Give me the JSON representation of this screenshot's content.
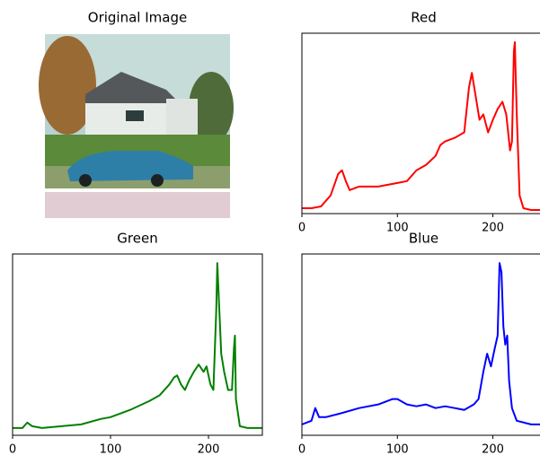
{
  "chart_data": [
    {
      "type": "image",
      "title": "Original Image"
    },
    {
      "type": "line",
      "title": "Red",
      "color": "#ff0000",
      "xlim": [
        0,
        255
      ],
      "ylim": [
        0,
        100
      ],
      "xticks": [
        0,
        100,
        200
      ],
      "x": [
        0,
        10,
        20,
        30,
        38,
        42,
        46,
        50,
        55,
        60,
        70,
        80,
        90,
        100,
        110,
        120,
        130,
        140,
        145,
        150,
        160,
        170,
        175,
        178,
        182,
        186,
        190,
        195,
        200,
        205,
        210,
        214,
        218,
        220,
        222,
        223,
        225,
        228,
        232,
        240,
        255
      ],
      "values": [
        3,
        3,
        4,
        10,
        22,
        24,
        18,
        13,
        14,
        15,
        15,
        15,
        16,
        17,
        18,
        24,
        27,
        32,
        38,
        40,
        42,
        45,
        70,
        78,
        65,
        52,
        55,
        45,
        52,
        58,
        62,
        55,
        35,
        40,
        90,
        95,
        55,
        10,
        3,
        2,
        2
      ]
    },
    {
      "type": "line",
      "title": "Green",
      "color": "#008000",
      "xlim": [
        0,
        255
      ],
      "ylim": [
        0,
        100
      ],
      "xticks": [
        0,
        100,
        200
      ],
      "x": [
        0,
        10,
        15,
        20,
        30,
        50,
        70,
        90,
        100,
        120,
        140,
        150,
        160,
        165,
        168,
        172,
        176,
        180,
        185,
        190,
        195,
        198,
        202,
        205,
        208,
        209,
        211,
        213,
        216,
        220,
        224,
        226,
        227,
        228,
        232,
        240,
        255
      ],
      "values": [
        4,
        4,
        7,
        5,
        4,
        5,
        6,
        9,
        10,
        14,
        19,
        22,
        28,
        32,
        33,
        28,
        25,
        30,
        35,
        39,
        35,
        38,
        28,
        25,
        70,
        95,
        70,
        45,
        35,
        25,
        25,
        48,
        55,
        20,
        5,
        4,
        4
      ]
    },
    {
      "type": "line",
      "title": "Blue",
      "color": "#0000ff",
      "xlim": [
        0,
        255
      ],
      "ylim": [
        0,
        100
      ],
      "xticks": [
        0,
        100,
        200
      ],
      "x": [
        0,
        10,
        14,
        18,
        25,
        40,
        60,
        80,
        95,
        100,
        110,
        120,
        130,
        140,
        150,
        160,
        170,
        180,
        185,
        190,
        194,
        198,
        202,
        205,
        207,
        209,
        211,
        213,
        215,
        217,
        220,
        225,
        240,
        255
      ],
      "values": [
        6,
        8,
        15,
        10,
        10,
        12,
        15,
        17,
        20,
        20,
        17,
        16,
        17,
        15,
        16,
        15,
        14,
        17,
        20,
        35,
        45,
        38,
        48,
        55,
        95,
        90,
        60,
        50,
        55,
        30,
        15,
        8,
        6,
        6
      ]
    }
  ]
}
